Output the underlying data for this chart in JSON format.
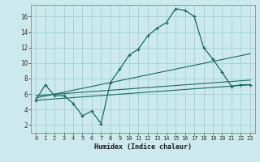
{
  "title": "",
  "xlabel": "Humidex (Indice chaleur)",
  "ylabel": "",
  "xlim": [
    -0.5,
    23.5
  ],
  "ylim": [
    1.0,
    17.5
  ],
  "yticks": [
    2,
    4,
    6,
    8,
    10,
    12,
    14,
    16
  ],
  "xticks": [
    0,
    1,
    2,
    3,
    4,
    5,
    6,
    7,
    8,
    9,
    10,
    11,
    12,
    13,
    14,
    15,
    16,
    17,
    18,
    19,
    20,
    21,
    22,
    23
  ],
  "bg_color": "#cce9ed",
  "grid_color": "#a8d4d9",
  "line_color": "#1a6b5e",
  "curve1_x": [
    0,
    1,
    2,
    3,
    4,
    5,
    6,
    7,
    8,
    9,
    10,
    11,
    12,
    13,
    14,
    15,
    16,
    17,
    18,
    19,
    20,
    21,
    22,
    23
  ],
  "curve1_y": [
    5.2,
    7.2,
    5.8,
    5.8,
    4.8,
    3.2,
    3.8,
    2.2,
    7.5,
    9.2,
    11.0,
    11.8,
    13.5,
    14.5,
    15.2,
    17.0,
    16.8,
    16.0,
    12.0,
    10.5,
    8.8,
    7.0,
    7.2,
    7.2
  ],
  "line1_x": [
    0,
    23
  ],
  "line1_y": [
    5.2,
    7.2
  ],
  "line2_x": [
    0,
    23
  ],
  "line2_y": [
    5.5,
    11.2
  ],
  "line3_x": [
    0,
    23
  ],
  "line3_y": [
    5.8,
    7.8
  ]
}
